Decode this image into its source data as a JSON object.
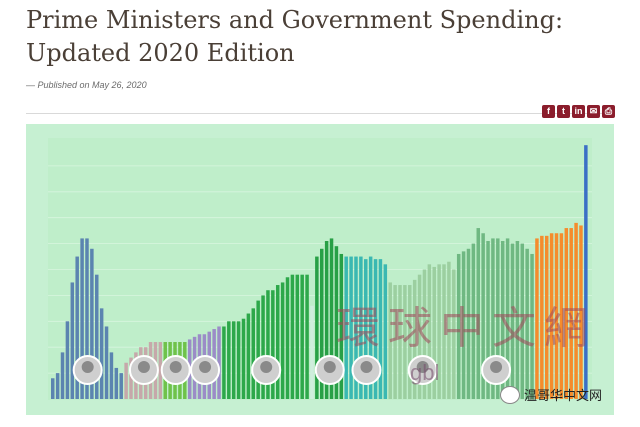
{
  "article": {
    "title": "Prime Ministers and Government Spending: Updated 2020 Edition",
    "byline": "— Published on May 26, 2020"
  },
  "share_icons": [
    "facebook-icon",
    "twitter-icon",
    "linkedin-icon",
    "email-icon",
    "print-icon"
  ],
  "share_glyphs": [
    "f",
    "t",
    "in",
    "✉",
    "⎙"
  ],
  "overlay": {
    "watermark_text": "環球中文網",
    "site_text": "gbl",
    "wechat_label": "温哥华中文网"
  },
  "colors": {
    "accent": "#8b1d2c",
    "plot_bg": "#bfeeca",
    "frame_bg": "#c6f0d2"
  },
  "chart_data": {
    "type": "bar",
    "title": "",
    "xlabel": "",
    "ylabel": "",
    "ylim": [
      0,
      100
    ],
    "grid": true,
    "groups": [
      {
        "color": "#5b84b0",
        "values": [
          8,
          10,
          18,
          30,
          45,
          55,
          62,
          62,
          58,
          48,
          35,
          28,
          18,
          12,
          10
        ]
      },
      {
        "color": "#c6a8aa",
        "values": [
          14,
          16,
          18,
          20,
          20,
          22,
          22,
          22
        ]
      },
      {
        "color": "#6fc24a",
        "values": [
          22,
          22,
          22,
          22,
          22
        ]
      },
      {
        "color": "#9b8cc7",
        "values": [
          23,
          24,
          25,
          25,
          26,
          27,
          28
        ]
      },
      {
        "color": "#2da84a",
        "values": [
          28,
          30,
          30,
          30,
          31,
          33,
          35,
          38,
          40,
          42,
          42,
          44,
          45,
          47,
          48,
          48,
          48,
          48
        ]
      },
      {
        "color": "#cfeedd",
        "values": [
          36
        ]
      },
      {
        "color": "#28a046",
        "values": [
          55,
          58,
          61,
          62,
          59,
          56
        ]
      },
      {
        "color": "#3ab8b2",
        "values": [
          55,
          55,
          55,
          55,
          54,
          55,
          54,
          54,
          52
        ]
      },
      {
        "color": "#9ccfa0",
        "values": [
          45,
          44,
          44,
          44,
          44,
          46,
          48,
          50,
          52,
          51,
          52,
          52,
          53,
          50
        ]
      },
      {
        "color": "#6fb882",
        "values": [
          56,
          57,
          58,
          60,
          66,
          64,
          61,
          62,
          62,
          61,
          62,
          60,
          61,
          60,
          58,
          56
        ]
      },
      {
        "color": "#f58c2c",
        "values": [
          62,
          63,
          63,
          64,
          64,
          64,
          66,
          66,
          68,
          67
        ]
      },
      {
        "color": "#3b6fc6",
        "values": [
          98
        ]
      }
    ]
  }
}
